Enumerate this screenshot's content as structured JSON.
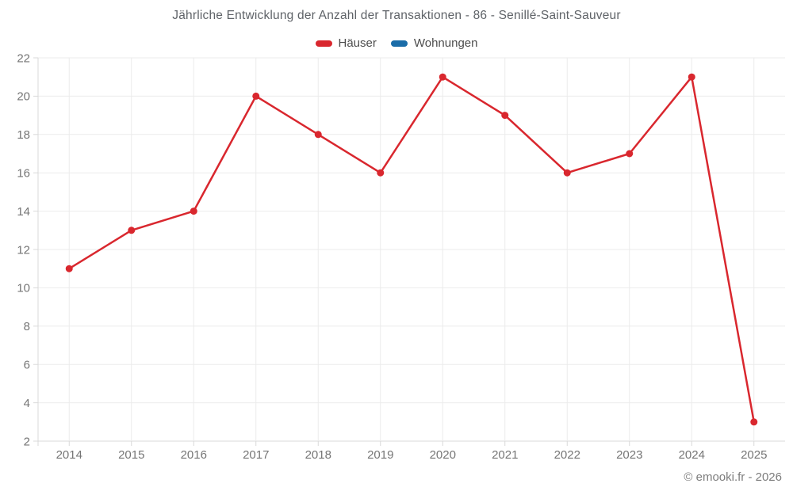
{
  "title": "Jährliche Entwicklung der Anzahl der Transaktionen - 86 - Senillé-Saint-Sauveur",
  "legend": {
    "items": [
      {
        "label": "Häuser",
        "color": "#d9272e"
      },
      {
        "label": "Wohnungen",
        "color": "#1a6ca8"
      }
    ]
  },
  "copyright": "© emooki.fr - 2026",
  "chart_data": {
    "type": "line",
    "title": "Jährliche Entwicklung der Anzahl der Transaktionen - 86 - Senillé-Saint-Sauveur",
    "categories": [
      "2014",
      "2015",
      "2016",
      "2017",
      "2018",
      "2019",
      "2020",
      "2021",
      "2022",
      "2023",
      "2024",
      "2025"
    ],
    "series": [
      {
        "name": "Häuser",
        "color": "#d9272e",
        "values": [
          11,
          13,
          14,
          20,
          18,
          16,
          21,
          19,
          16,
          17,
          21,
          3
        ]
      },
      {
        "name": "Wohnungen",
        "color": "#1a6ca8",
        "values": []
      }
    ],
    "xlabel": "",
    "ylabel": "",
    "ylim": [
      2,
      22
    ],
    "ytick_step": 2,
    "grid": true,
    "legend_position": "top",
    "annotations": [
      "© emooki.fr - 2026"
    ]
  },
  "colors": {
    "grid": "#ebebeb",
    "axis": "#d9d9d9",
    "tick_label": "#757575",
    "title_text": "#5f6368",
    "legend_text": "#4c4c4c",
    "background": "#ffffff"
  }
}
